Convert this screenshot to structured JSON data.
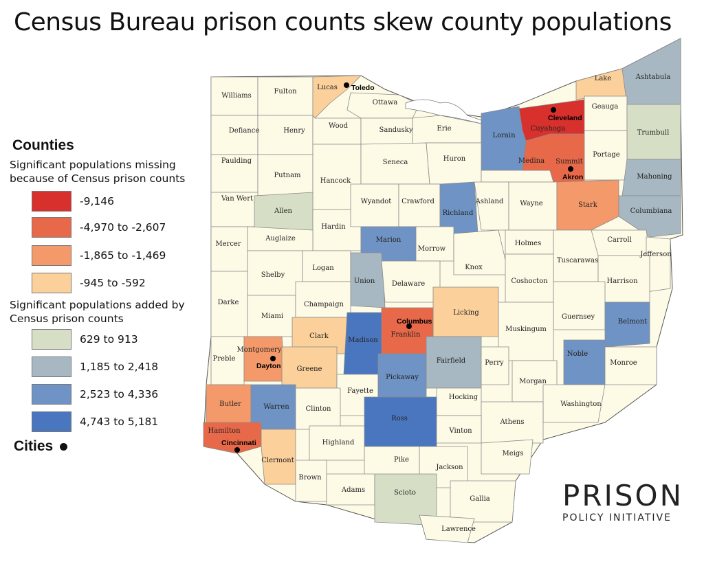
{
  "title": "Census Bureau prison counts skew county populations",
  "legend": {
    "heading": "Counties",
    "missing_caption": "Significant populations missing because of Census prison counts",
    "missing_items": [
      {
        "label": "-9,146",
        "color": "#d7302d"
      },
      {
        "label": "-4,970 to -2,607",
        "color": "#e8684a"
      },
      {
        "label": "-1,865 to -1,469",
        "color": "#f4996a"
      },
      {
        "label": "-945 to -592",
        "color": "#fbd09a"
      }
    ],
    "added_caption": "Significant populations added by Census prison counts",
    "added_items": [
      {
        "label": "629 to 913",
        "color": "#d6dfc6"
      },
      {
        "label": "1,185 to 2,418",
        "color": "#a7b8c2"
      },
      {
        "label": "2,523 to 4,336",
        "color": "#6f93c4"
      },
      {
        "label": "4,743 to 5,181",
        "color": "#4a76bf"
      }
    ],
    "cities_label": "Cities"
  },
  "colors": {
    "default": "#fdfae6",
    "lake": "#ffffff",
    "border": "#8a8a8a"
  },
  "counties": [
    {
      "name": "Williams",
      "cls": "none"
    },
    {
      "name": "Fulton",
      "cls": "none"
    },
    {
      "name": "Lucas",
      "cls": "m4"
    },
    {
      "name": "Ottawa",
      "cls": "none"
    },
    {
      "name": "Lake",
      "cls": "m4"
    },
    {
      "name": "Ashtabula",
      "cls": "a2"
    },
    {
      "name": "Defiance",
      "cls": "none"
    },
    {
      "name": "Henry",
      "cls": "none"
    },
    {
      "name": "Wood",
      "cls": "none"
    },
    {
      "name": "Sandusky",
      "cls": "none"
    },
    {
      "name": "Erie",
      "cls": "none"
    },
    {
      "name": "Lorain",
      "cls": "a3"
    },
    {
      "name": "Cuyahoga",
      "cls": "m1"
    },
    {
      "name": "Geauga",
      "cls": "none"
    },
    {
      "name": "Trumbull",
      "cls": "a1"
    },
    {
      "name": "Paulding",
      "cls": "none"
    },
    {
      "name": "Putnam",
      "cls": "none"
    },
    {
      "name": "Hancock",
      "cls": "none"
    },
    {
      "name": "Seneca",
      "cls": "none"
    },
    {
      "name": "Huron",
      "cls": "none"
    },
    {
      "name": "Medina",
      "cls": "none"
    },
    {
      "name": "Summit",
      "cls": "m2"
    },
    {
      "name": "Portage",
      "cls": "none"
    },
    {
      "name": "Mahoning",
      "cls": "a2"
    },
    {
      "name": "Van Wert",
      "cls": "none"
    },
    {
      "name": "Allen",
      "cls": "a1"
    },
    {
      "name": "Hardin",
      "cls": "none"
    },
    {
      "name": "Wyandot",
      "cls": "none"
    },
    {
      "name": "Crawford",
      "cls": "none"
    },
    {
      "name": "Richland",
      "cls": "a3"
    },
    {
      "name": "Ashland",
      "cls": "none"
    },
    {
      "name": "Wayne",
      "cls": "none"
    },
    {
      "name": "Stark",
      "cls": "m3"
    },
    {
      "name": "Columbiana",
      "cls": "a2"
    },
    {
      "name": "Mercer",
      "cls": "none"
    },
    {
      "name": "Auglaize",
      "cls": "none"
    },
    {
      "name": "Marion",
      "cls": "a3"
    },
    {
      "name": "Morrow",
      "cls": "none"
    },
    {
      "name": "Knox",
      "cls": "none"
    },
    {
      "name": "Holmes",
      "cls": "none"
    },
    {
      "name": "Tuscarawas",
      "cls": "none"
    },
    {
      "name": "Carroll",
      "cls": "none"
    },
    {
      "name": "Jefferson",
      "cls": "none"
    },
    {
      "name": "Shelby",
      "cls": "none"
    },
    {
      "name": "Logan",
      "cls": "none"
    },
    {
      "name": "Union",
      "cls": "a2"
    },
    {
      "name": "Delaware",
      "cls": "none"
    },
    {
      "name": "Coshocton",
      "cls": "none"
    },
    {
      "name": "Harrison",
      "cls": "none"
    },
    {
      "name": "Darke",
      "cls": "none"
    },
    {
      "name": "Miami",
      "cls": "none"
    },
    {
      "name": "Champaign",
      "cls": "none"
    },
    {
      "name": "Licking",
      "cls": "m4"
    },
    {
      "name": "Guernsey",
      "cls": "none"
    },
    {
      "name": "Belmont",
      "cls": "a3"
    },
    {
      "name": "Clark",
      "cls": "m4"
    },
    {
      "name": "Madison",
      "cls": "a4"
    },
    {
      "name": "Franklin",
      "cls": "m2"
    },
    {
      "name": "Muskingum",
      "cls": "none"
    },
    {
      "name": "Preble",
      "cls": "none"
    },
    {
      "name": "Montgomery",
      "cls": "m3"
    },
    {
      "name": "Greene",
      "cls": "m4"
    },
    {
      "name": "Fairfield",
      "cls": "a2"
    },
    {
      "name": "Perry",
      "cls": "none"
    },
    {
      "name": "Noble",
      "cls": "a3"
    },
    {
      "name": "Monroe",
      "cls": "none"
    },
    {
      "name": "Fayette",
      "cls": "none"
    },
    {
      "name": "Pickaway",
      "cls": "a3"
    },
    {
      "name": "Morgan",
      "cls": "none"
    },
    {
      "name": "Butler",
      "cls": "m3"
    },
    {
      "name": "Warren",
      "cls": "a3"
    },
    {
      "name": "Clinton",
      "cls": "none"
    },
    {
      "name": "Hocking",
      "cls": "none"
    },
    {
      "name": "Washington",
      "cls": "none"
    },
    {
      "name": "Ross",
      "cls": "a4"
    },
    {
      "name": "Athens",
      "cls": "none"
    },
    {
      "name": "Hamilton",
      "cls": "m2"
    },
    {
      "name": "Highland",
      "cls": "none"
    },
    {
      "name": "Vinton",
      "cls": "none"
    },
    {
      "name": "Clermont",
      "cls": "m4"
    },
    {
      "name": "Pike",
      "cls": "none"
    },
    {
      "name": "Jackson",
      "cls": "none"
    },
    {
      "name": "Meigs",
      "cls": "none"
    },
    {
      "name": "Brown",
      "cls": "none"
    },
    {
      "name": "Adams",
      "cls": "none"
    },
    {
      "name": "Scioto",
      "cls": "a1"
    },
    {
      "name": "Gallia",
      "cls": "none"
    },
    {
      "name": "Lawrence",
      "cls": "none"
    }
  ],
  "cities": [
    "Toledo",
    "Cleveland",
    "Akron",
    "Columbus",
    "Dayton",
    "Cincinnati"
  ],
  "logo": {
    "line1": "PRISON",
    "line2": "POLICY INITIATIVE"
  }
}
